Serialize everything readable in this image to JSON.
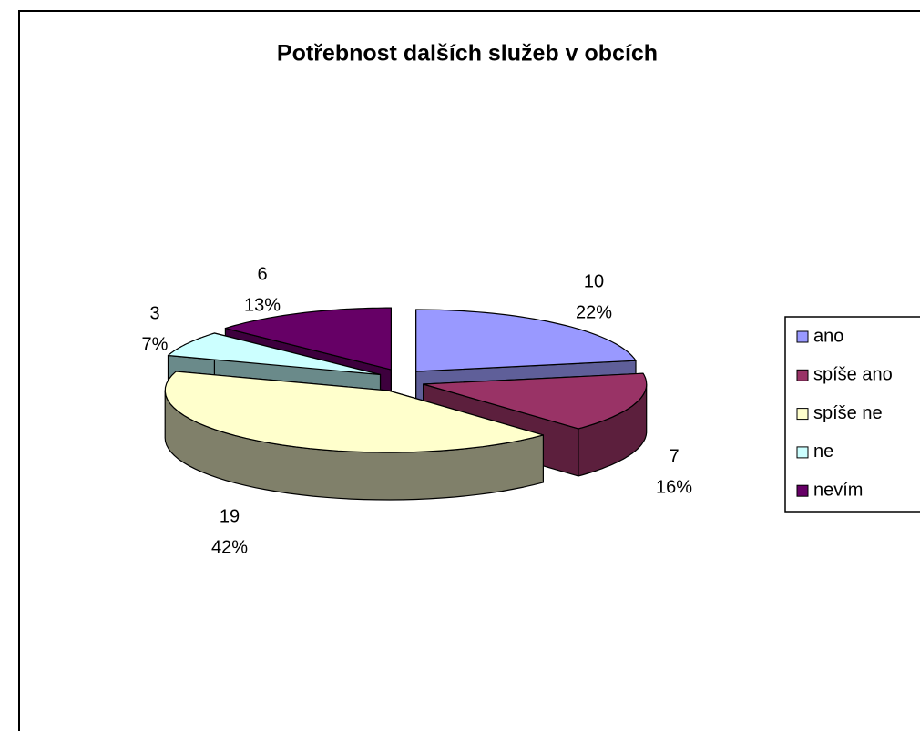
{
  "chart_data": {
    "type": "pie3d",
    "title": "Potřebnost dalších služeb v obcích",
    "categories": [
      "ano",
      "spíše ano",
      "spíše ne",
      "ne",
      "nevím"
    ],
    "values": [
      10,
      7,
      19,
      3,
      6
    ],
    "percent_labels": [
      "22%",
      "16%",
      "42%",
      "7%",
      "13%"
    ],
    "colors": [
      "#9999ff",
      "#993366",
      "#ffffcc",
      "#ccffff",
      "#660066"
    ],
    "side_colors": [
      "#5f5f99",
      "#5c1f3d",
      "#80806a",
      "#6a8a8a",
      "#3d003d"
    ],
    "legend": "right"
  }
}
